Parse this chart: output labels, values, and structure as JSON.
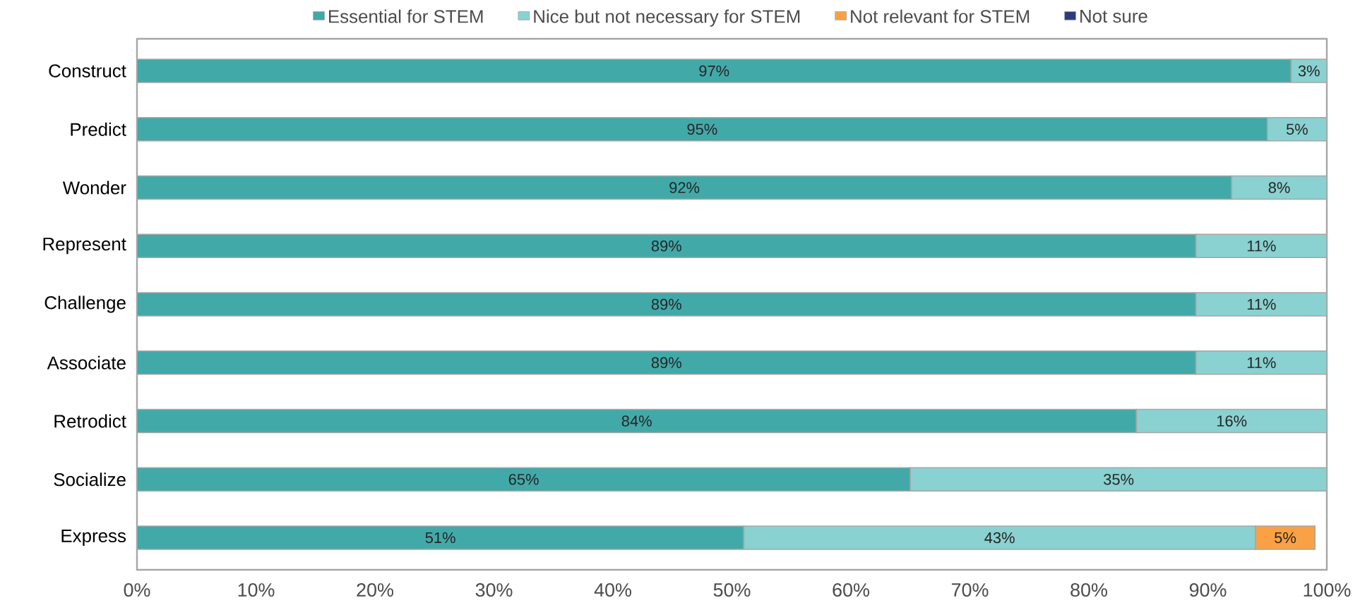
{
  "chart_data": {
    "type": "bar",
    "orientation": "horizontal",
    "stacked": true,
    "categories": [
      "Construct",
      "Predict",
      "Wonder",
      "Represent",
      "Challenge",
      "Associate",
      "Retrodict",
      "Socialize",
      "Express"
    ],
    "series": [
      {
        "name": "Essential for STEM",
        "color": "#42a9a9",
        "values": [
          97,
          95,
          92,
          89,
          89,
          89,
          84,
          65,
          51
        ],
        "value_labels": [
          "97%",
          "95%",
          "92%",
          "89%",
          "89%",
          "89%",
          "84%",
          "65%",
          "51%"
        ]
      },
      {
        "name": "Nice but not necessary for STEM",
        "color": "#8ad1d1",
        "values": [
          3,
          5,
          8,
          11,
          11,
          11,
          16,
          35,
          43
        ],
        "value_labels": [
          "3%",
          "5%",
          "8%",
          "11%",
          "11%",
          "11%",
          "16%",
          "35%",
          "43%"
        ]
      },
      {
        "name": "Not relevant for STEM",
        "color": "#f9a144",
        "values": [
          null,
          null,
          null,
          null,
          null,
          null,
          null,
          null,
          5
        ],
        "value_labels": [
          null,
          null,
          null,
          null,
          null,
          null,
          null,
          null,
          "5%"
        ]
      },
      {
        "name": "Not sure",
        "color": "#2e3a7c",
        "values": [
          null,
          null,
          null,
          null,
          null,
          null,
          null,
          null,
          null
        ]
      }
    ],
    "xlim": [
      0,
      100
    ],
    "xticks": [
      {
        "value": 0,
        "label": "0%"
      },
      {
        "value": 10,
        "label": "10%"
      },
      {
        "value": 20,
        "label": "20%"
      },
      {
        "value": 30,
        "label": "30%"
      },
      {
        "value": 40,
        "label": "40%"
      },
      {
        "value": 50,
        "label": "50%"
      },
      {
        "value": 60,
        "label": "60%"
      },
      {
        "value": 70,
        "label": "70%"
      },
      {
        "value": 80,
        "label": "80%"
      },
      {
        "value": 90,
        "label": "90%"
      },
      {
        "value": 100,
        "label": "100%"
      }
    ],
    "grid": false,
    "legend": "top"
  }
}
